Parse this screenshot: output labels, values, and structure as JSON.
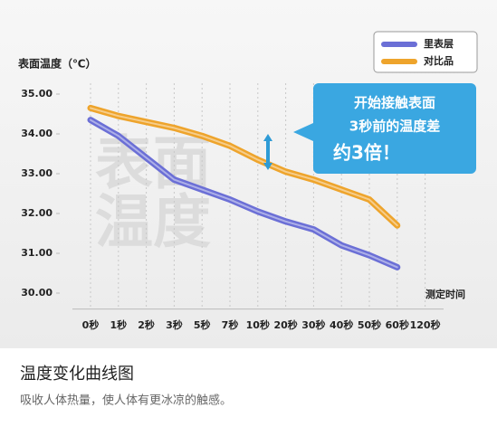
{
  "chart_data": {
    "type": "line",
    "y_label": "表面温度（℃）",
    "x_label": "测定时间",
    "watermark": [
      "表面",
      "温度"
    ],
    "annotation": [
      "开始接触表面",
      "3秒前的温度差",
      "约3倍！"
    ],
    "categories": [
      "0秒",
      "1秒",
      "2秒",
      "3秒",
      "5秒",
      "7秒",
      "10秒",
      "20秒",
      "30秒",
      "40秒",
      "50秒",
      "60秒",
      "120秒"
    ],
    "series": [
      {
        "name": "里表层",
        "color": "#6b6fd6",
        "values": [
          34.35,
          33.95,
          33.4,
          32.85,
          32.6,
          32.35,
          32.05,
          31.8,
          31.6,
          31.2,
          30.95,
          30.65,
          null
        ]
      },
      {
        "name": "对比品",
        "color": "#eea42c",
        "values": [
          34.65,
          34.45,
          34.3,
          34.15,
          33.95,
          33.7,
          33.35,
          33.05,
          32.85,
          32.6,
          32.35,
          31.7,
          null
        ]
      }
    ],
    "ylim": [
      29.6,
      35.6
    ],
    "yticks": [
      {
        "value": 30,
        "label": "30.00"
      },
      {
        "value": 31,
        "label": "31.00"
      },
      {
        "value": 32,
        "label": "32.00"
      },
      {
        "value": 33,
        "label": "33.00"
      },
      {
        "value": 34,
        "label": "34.00"
      },
      {
        "value": 35,
        "label": "35.00"
      }
    ],
    "legend": "top-right"
  },
  "caption": {
    "title": "温度变化曲线图",
    "text": "吸收人体热量，使人体有更冰凉的触感。"
  }
}
